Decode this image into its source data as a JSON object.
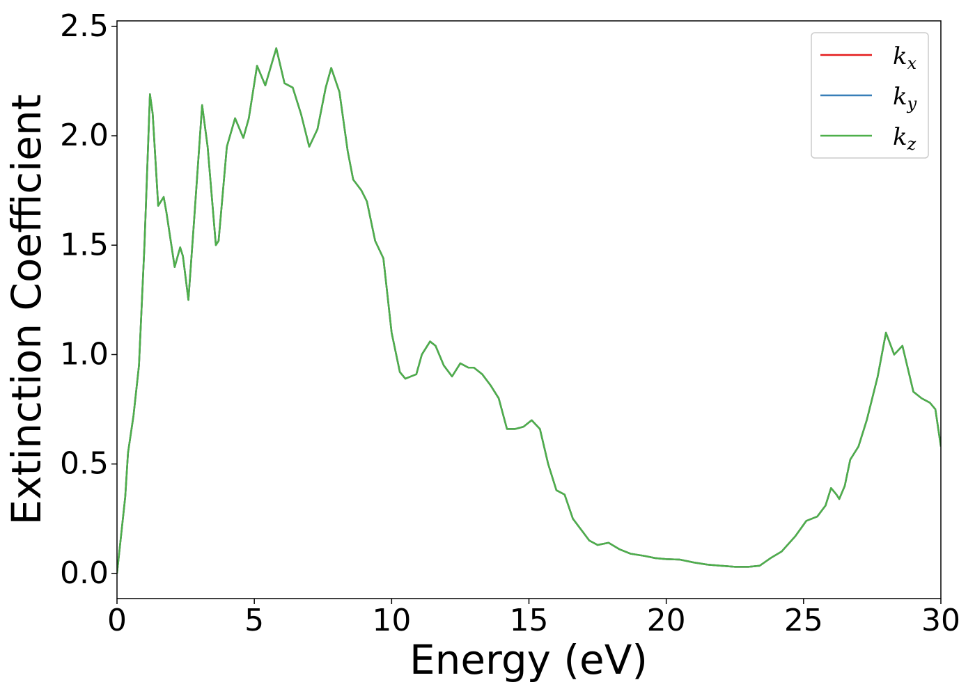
{
  "chart_data": {
    "type": "line",
    "xlabel": "Energy (eV)",
    "ylabel": "Extinction Coefficient",
    "xlim": [
      0,
      30
    ],
    "xticks": [
      0,
      5,
      10,
      15,
      20,
      25,
      30
    ],
    "ylim": [
      -0.115,
      2.525
    ],
    "yticks": [
      {
        "value": 0,
        "label": "0.0"
      },
      0.5,
      {
        "value": 1,
        "label": "1.0"
      },
      1.5,
      {
        "value": 2,
        "label": "2.0"
      },
      2.5
    ],
    "legend": "upper right",
    "x": [
      0,
      0.3,
      0.4,
      0.6,
      0.8,
      1.0,
      1.2,
      1.3,
      1.5,
      1.7,
      1.8,
      2.1,
      2.3,
      2.4,
      2.6,
      2.8,
      3.1,
      3.3,
      3.6,
      3.7,
      4.0,
      4.3,
      4.6,
      4.8,
      5.1,
      5.4,
      5.8,
      6.1,
      6.4,
      6.7,
      7.0,
      7.3,
      7.6,
      7.8,
      8.1,
      8.4,
      8.6,
      8.9,
      9.1,
      9.4,
      9.7,
      10.0,
      10.3,
      10.5,
      10.7,
      10.9,
      11.1,
      11.4,
      11.6,
      11.9,
      12.2,
      12.5,
      12.8,
      13.0,
      13.3,
      13.6,
      13.9,
      14.2,
      14.5,
      14.8,
      15.1,
      15.4,
      15.7,
      16.0,
      16.3,
      16.6,
      16.9,
      17.2,
      17.5,
      17.9,
      18.3,
      18.7,
      19.2,
      19.6,
      20.0,
      20.5,
      21.0,
      21.5,
      22.0,
      22.5,
      23.0,
      23.4,
      23.8,
      24.2,
      24.7,
      25.1,
      25.5,
      25.8,
      26.0,
      26.2,
      26.3,
      26.5,
      26.7,
      27.0,
      27.3,
      27.7,
      28.0,
      28.3,
      28.6,
      29.0,
      29.3,
      29.6,
      29.8,
      30.0
    ],
    "series": [
      {
        "name": "k_x",
        "color": "#e41a1c",
        "values": [
          0,
          0.35,
          0.55,
          0.72,
          0.95,
          1.5,
          2.19,
          2.1,
          1.68,
          1.72,
          1.65,
          1.4,
          1.49,
          1.45,
          1.25,
          1.6,
          2.14,
          1.95,
          1.5,
          1.52,
          1.95,
          2.08,
          1.99,
          2.08,
          2.32,
          2.23,
          2.4,
          2.24,
          2.22,
          2.1,
          1.95,
          2.03,
          2.22,
          2.31,
          2.2,
          1.93,
          1.8,
          1.75,
          1.7,
          1.52,
          1.44,
          1.1,
          0.92,
          0.89,
          0.9,
          0.91,
          1.0,
          1.06,
          1.04,
          0.95,
          0.9,
          0.96,
          0.94,
          0.94,
          0.91,
          0.86,
          0.8,
          0.66,
          0.66,
          0.67,
          0.7,
          0.66,
          0.5,
          0.38,
          0.36,
          0.25,
          0.2,
          0.15,
          0.13,
          0.14,
          0.11,
          0.09,
          0.08,
          0.07,
          0.065,
          0.063,
          0.05,
          0.04,
          0.035,
          0.03,
          0.03,
          0.035,
          0.07,
          0.1,
          0.17,
          0.24,
          0.26,
          0.31,
          0.39,
          0.36,
          0.34,
          0.4,
          0.52,
          0.58,
          0.7,
          0.9,
          1.1,
          1.0,
          1.04,
          0.83,
          0.8,
          0.78,
          0.75,
          0.58
        ]
      },
      {
        "name": "k_y",
        "color": "#377eb8",
        "values": [
          0,
          0.35,
          0.55,
          0.72,
          0.95,
          1.5,
          2.19,
          2.1,
          1.68,
          1.72,
          1.65,
          1.4,
          1.49,
          1.45,
          1.25,
          1.6,
          2.14,
          1.95,
          1.5,
          1.52,
          1.95,
          2.08,
          1.99,
          2.08,
          2.32,
          2.23,
          2.4,
          2.24,
          2.22,
          2.1,
          1.95,
          2.03,
          2.22,
          2.31,
          2.2,
          1.93,
          1.8,
          1.75,
          1.7,
          1.52,
          1.44,
          1.1,
          0.92,
          0.89,
          0.9,
          0.91,
          1.0,
          1.06,
          1.04,
          0.95,
          0.9,
          0.96,
          0.94,
          0.94,
          0.91,
          0.86,
          0.8,
          0.66,
          0.66,
          0.67,
          0.7,
          0.66,
          0.5,
          0.38,
          0.36,
          0.25,
          0.2,
          0.15,
          0.13,
          0.14,
          0.11,
          0.09,
          0.08,
          0.07,
          0.065,
          0.063,
          0.05,
          0.04,
          0.035,
          0.03,
          0.03,
          0.035,
          0.07,
          0.1,
          0.17,
          0.24,
          0.26,
          0.31,
          0.39,
          0.36,
          0.34,
          0.4,
          0.52,
          0.58,
          0.7,
          0.9,
          1.1,
          1.0,
          1.04,
          0.83,
          0.8,
          0.78,
          0.75,
          0.58
        ]
      },
      {
        "name": "k_z",
        "color": "#4daf4a",
        "values": [
          0,
          0.35,
          0.55,
          0.72,
          0.95,
          1.5,
          2.19,
          2.1,
          1.68,
          1.72,
          1.65,
          1.4,
          1.49,
          1.45,
          1.25,
          1.6,
          2.14,
          1.95,
          1.5,
          1.52,
          1.95,
          2.08,
          1.99,
          2.08,
          2.32,
          2.23,
          2.4,
          2.24,
          2.22,
          2.1,
          1.95,
          2.03,
          2.22,
          2.31,
          2.2,
          1.93,
          1.8,
          1.75,
          1.7,
          1.52,
          1.44,
          1.1,
          0.92,
          0.89,
          0.9,
          0.91,
          1.0,
          1.06,
          1.04,
          0.95,
          0.9,
          0.96,
          0.94,
          0.94,
          0.91,
          0.86,
          0.8,
          0.66,
          0.66,
          0.67,
          0.7,
          0.66,
          0.5,
          0.38,
          0.36,
          0.25,
          0.2,
          0.15,
          0.13,
          0.14,
          0.11,
          0.09,
          0.08,
          0.07,
          0.065,
          0.063,
          0.05,
          0.04,
          0.035,
          0.03,
          0.03,
          0.035,
          0.07,
          0.1,
          0.17,
          0.24,
          0.26,
          0.31,
          0.39,
          0.36,
          0.34,
          0.4,
          0.52,
          0.58,
          0.7,
          0.9,
          1.1,
          1.0,
          1.04,
          0.83,
          0.8,
          0.78,
          0.75,
          0.58
        ]
      }
    ]
  }
}
